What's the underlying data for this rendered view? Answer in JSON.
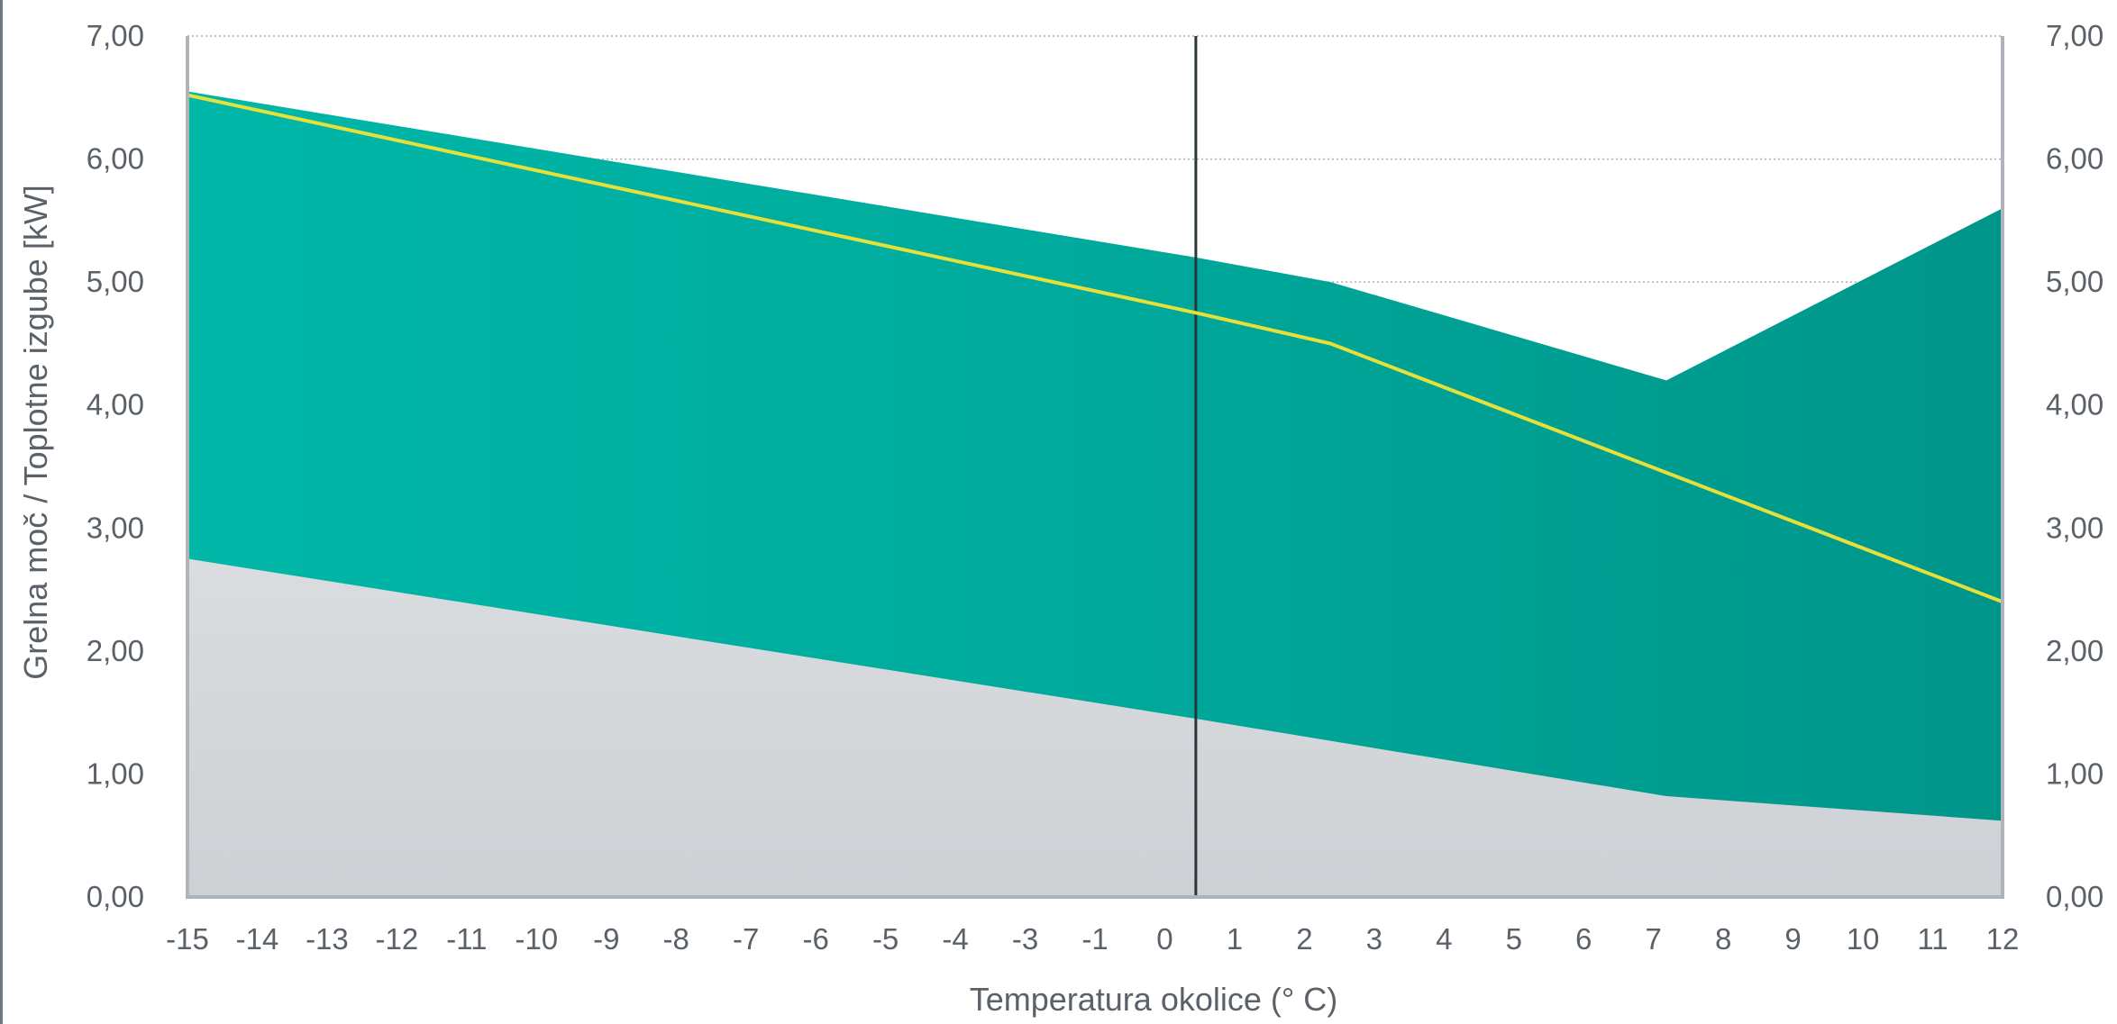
{
  "chart_data": {
    "type": "area",
    "xlabel": "Temperatura okolice (° C)",
    "ylabel": "Grelna moč / Toplotne izgube [kW]",
    "x_ticks": [
      "-15",
      "-14",
      "-13",
      "-12",
      "-11",
      "-10",
      "-9",
      "-8",
      "-7",
      "-6",
      "-5",
      "-4",
      "-3",
      "-1",
      "0",
      "1",
      "2",
      "3",
      "4",
      "5",
      "6",
      "7",
      "8",
      "9",
      "10",
      "11",
      "12"
    ],
    "y_ticks": [
      "0,00",
      "1,00",
      "2,00",
      "3,00",
      "4,00",
      "5,00",
      "6,00",
      "7,00"
    ],
    "xlim": [
      -15,
      12
    ],
    "ylim": [
      0,
      7
    ],
    "grid": "horizontal dotted",
    "reference_line_x": 0,
    "series": [
      {
        "kind": "area-band-lower",
        "color": "#d3d6da",
        "x": [
          -15,
          0,
          7,
          12
        ],
        "values": [
          2.75,
          1.45,
          0.82,
          0.62
        ]
      },
      {
        "kind": "area-band-upper",
        "color": "#00a99a",
        "x": [
          -15,
          0,
          2,
          7,
          12
        ],
        "values": [
          6.55,
          5.2,
          5.0,
          4.2,
          5.6
        ]
      },
      {
        "kind": "line",
        "color": "#e5e03a",
        "x": [
          -15,
          0,
          2,
          12
        ],
        "values": [
          6.52,
          4.75,
          4.5,
          2.4
        ]
      }
    ]
  }
}
